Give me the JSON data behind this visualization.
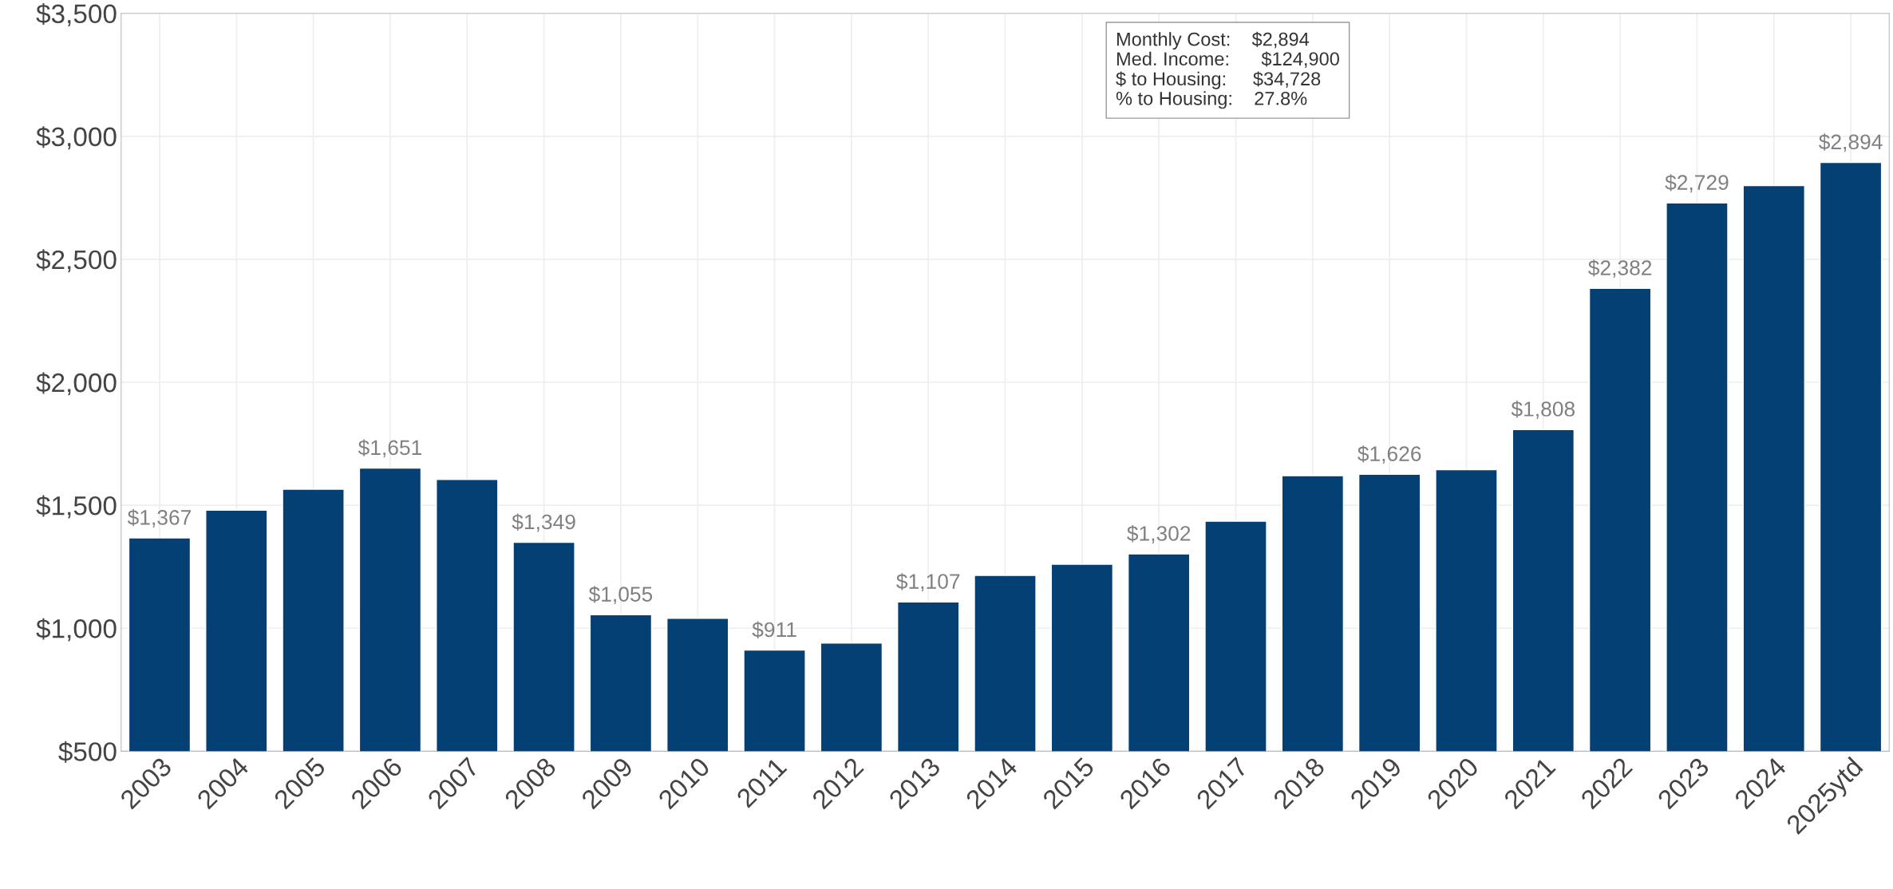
{
  "chart_data": {
    "type": "bar",
    "categories": [
      "2003",
      "2004",
      "2005",
      "2006",
      "2007",
      "2008",
      "2009",
      "2010",
      "2011",
      "2012",
      "2013",
      "2014",
      "2015",
      "2016",
      "2017",
      "2018",
      "2019",
      "2020",
      "2021",
      "2022",
      "2023",
      "2024",
      "2025ytd"
    ],
    "series": [
      {
        "color": "#054075",
        "values": [
          1367,
          1480,
          1565,
          1651,
          1605,
          1349,
          1055,
          1040,
          911,
          940,
          1107,
          1215,
          1260,
          1302,
          1435,
          1620,
          1626,
          1645,
          1808,
          2382,
          2729,
          2800,
          2894
        ]
      }
    ],
    "value_labels": [
      "$1,367",
      null,
      null,
      "$1,651",
      null,
      "$1,349",
      "$1,055",
      null,
      "$911",
      null,
      "$1,107",
      null,
      null,
      "$1,302",
      null,
      null,
      "$1,626",
      null,
      "$1,808",
      "$2,382",
      "$2,729",
      null,
      "$2,894"
    ],
    "ylim": [
      500,
      3500
    ],
    "yticks": [
      {
        "value": 500,
        "label": "$500"
      },
      {
        "value": 1000,
        "label": "$1,000"
      },
      {
        "value": 1500,
        "label": "$1,500"
      },
      {
        "value": 2000,
        "label": "$2,000"
      },
      {
        "value": 2500,
        "label": "$2,500"
      },
      {
        "value": 3000,
        "label": "$3,000"
      },
      {
        "value": 3500,
        "label": "$3,500"
      }
    ],
    "grid": true,
    "annotations": [
      "Monthly Cost:    $2,894",
      "Med. Income:      $124,900",
      "$ to Housing:     $34,728",
      "% to Housing:    27.8%"
    ]
  }
}
